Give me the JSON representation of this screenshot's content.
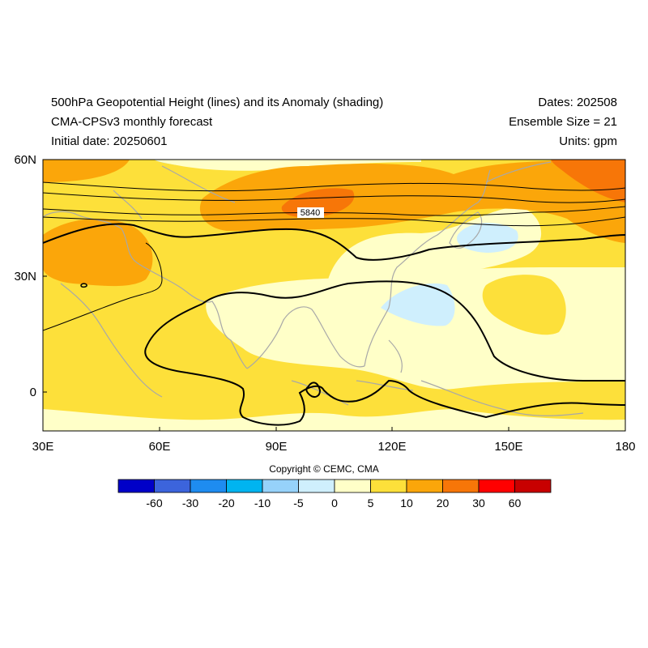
{
  "header": {
    "title_line1": "500hPa Geopotential Height (lines) and its Anomaly (shading)",
    "title_line2": "CMA-CPSv3 monthly forecast",
    "title_line3": "Initial date: 20250601",
    "dates": "Dates: 202508",
    "ensemble": "Ensemble Size = 21",
    "units": "Units: gpm"
  },
  "map": {
    "lon_range": [
      30,
      180
    ],
    "lat_range": [
      -10,
      60
    ],
    "x_ticks": [
      "30E",
      "60E",
      "90E",
      "120E",
      "150E",
      "180"
    ],
    "y_ticks": [
      "60N",
      "30N",
      "0"
    ],
    "contour_label": "5840",
    "colors": {
      "shade_0_5": "#ffffc8",
      "shade_5_10": "#fde03a",
      "shade_10_20": "#fba60a",
      "shade_20_30": "#f77608",
      "shade_neg_5_0": "#cfeffd",
      "coast": "#a8a8a8",
      "contour": "#000000"
    }
  },
  "copyright": "Copyright © CEMC, CMA",
  "colorbar": {
    "colors": [
      "#0000c8",
      "#3c64dc",
      "#1e8cf0",
      "#00b4f0",
      "#96d2fa",
      "#cfeffd",
      "#ffffc8",
      "#fde03a",
      "#fba60a",
      "#f77608",
      "#ff0000",
      "#c80000"
    ],
    "labels": [
      "-60",
      "-30",
      "-20",
      "-10",
      "-5",
      "0",
      "5",
      "10",
      "20",
      "30",
      "60"
    ]
  }
}
